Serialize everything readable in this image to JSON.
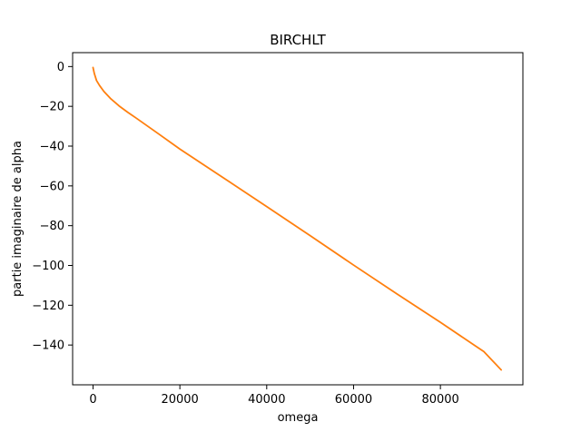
{
  "chart_data": {
    "type": "line",
    "title": "BIRCHLT",
    "xlabel": "omega",
    "ylabel": "partie imaginaire de alpha",
    "xlim": [
      -4700,
      99000
    ],
    "ylim": [
      -160,
      7
    ],
    "x_ticks": [
      0,
      20000,
      40000,
      60000,
      80000
    ],
    "x_tick_labels": [
      "0",
      "20000",
      "40000",
      "60000",
      "80000"
    ],
    "y_ticks": [
      0,
      -20,
      -40,
      -60,
      -80,
      -100,
      -120,
      -140
    ],
    "y_tick_labels": [
      "0",
      "−20",
      "−40",
      "−60",
      "−80",
      "−100",
      "−120",
      "−140"
    ],
    "grid": false,
    "series": [
      {
        "color": "#ff7f0e",
        "x": [
          0,
          300,
          800,
          1500,
          2500,
          4000,
          6000,
          8000,
          10000,
          15000,
          20000,
          30000,
          40000,
          50000,
          60000,
          70000,
          80000,
          90000,
          94000
        ],
        "y": [
          -0.5,
          -3.5,
          -7,
          -9.5,
          -12.5,
          -16,
          -19.8,
          -23,
          -26,
          -33.7,
          -41.5,
          -55.9,
          -70.4,
          -85.0,
          -99.8,
          -114.3,
          -128.6,
          -143.3,
          -152.5
        ]
      }
    ]
  }
}
